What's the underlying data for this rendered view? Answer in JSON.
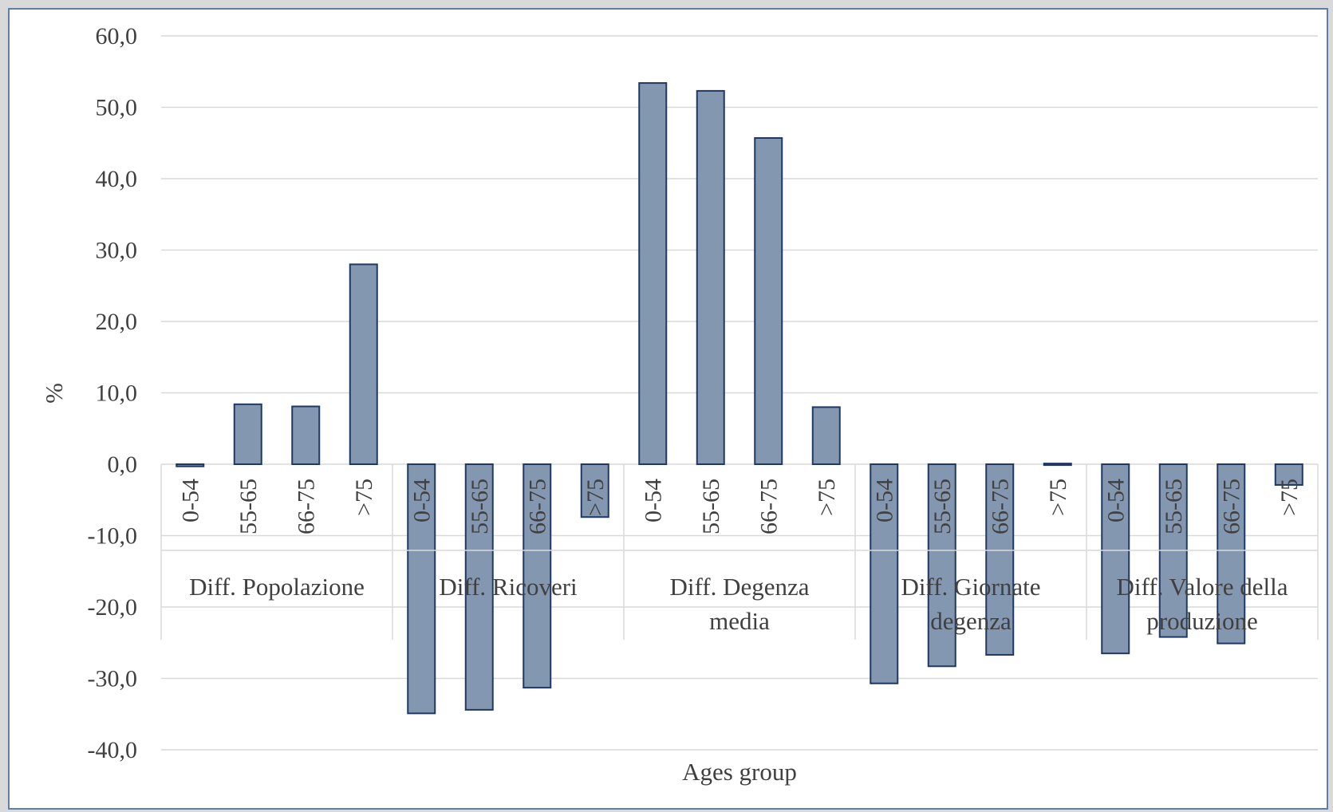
{
  "chart_data": {
    "type": "bar",
    "title": "",
    "xlabel": "Ages group",
    "ylabel": "%",
    "ylim": [
      -40,
      60
    ],
    "yticks": [
      60,
      50,
      40,
      30,
      20,
      10,
      0,
      -10,
      -20,
      -30,
      -40
    ],
    "ytick_labels": [
      "60,0",
      "50,0",
      "40,0",
      "30,0",
      "20,0",
      "10,0",
      "0,0",
      "-10,0",
      "-20,0",
      "-30,0",
      "-40,0"
    ],
    "grid": true,
    "legend": "none",
    "bar_color": "#8497b0",
    "bar_border_color": "#1f3864",
    "groups": [
      {
        "label_lines": [
          "Diff. Popolazione"
        ],
        "categories": [
          "0-54",
          "55-65",
          "66-75",
          ">75"
        ],
        "values": [
          -0.3,
          8.4,
          8.1,
          28.0
        ]
      },
      {
        "label_lines": [
          "Diff. Ricoveri"
        ],
        "categories": [
          "0-54",
          "55-65",
          "66-75",
          ">75"
        ],
        "values": [
          -34.9,
          -34.4,
          -31.3,
          -7.4
        ]
      },
      {
        "label_lines": [
          "Diff. Degenza",
          "media"
        ],
        "categories": [
          "0-54",
          "55-65",
          "66-75",
          ">75"
        ],
        "values": [
          53.4,
          52.3,
          45.7,
          8.0
        ]
      },
      {
        "label_lines": [
          "Diff. Giornate",
          "degenza"
        ],
        "categories": [
          "0-54",
          "55-65",
          "66-75",
          ">75"
        ],
        "values": [
          -30.7,
          -28.3,
          -26.7,
          0.1
        ]
      },
      {
        "label_lines": [
          "Diff. Valore della",
          "produzione"
        ],
        "categories": [
          "0-54",
          "55-65",
          "66-75",
          ">75"
        ],
        "values": [
          -26.5,
          -24.2,
          -25.1,
          -2.9
        ]
      }
    ]
  }
}
